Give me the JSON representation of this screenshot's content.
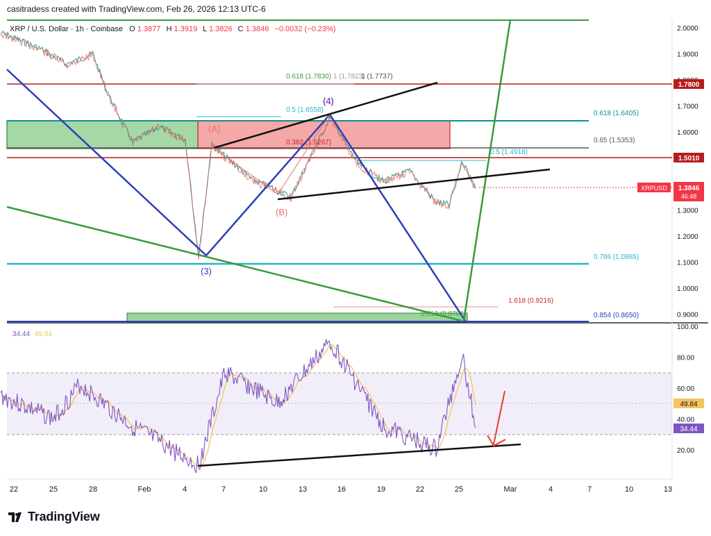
{
  "header": {
    "attribution": "casitradess created with TradingView.com, Feb 26, 2026 12:13 UTC-6"
  },
  "legend": {
    "symbol": "XRP / U.S. Dollar · 1h · Coinbase",
    "o_label": "O",
    "o": "1.3877",
    "h_label": "H",
    "h": "1.3919",
    "l_label": "L",
    "l": "1.3826",
    "c_label": "C",
    "c": "1.3846",
    "change": "−0.0032 (−0.23%)"
  },
  "colors": {
    "up": "#089981",
    "down": "#f23645",
    "blue": "#2b3fb8",
    "green": "#3a9a3a",
    "cyan": "#26b6c8",
    "red": "#b71c1c",
    "rsi": "#7e57c2",
    "rsi_ma": "#f5c45e",
    "price_badge": "#f23645",
    "rsi_badge": "#7e57c2",
    "ma_badge": "#f5c45e"
  },
  "price_axis": {
    "labels": [
      "2.0000",
      "1.9000",
      "1.8000",
      "1.7000",
      "1.6000",
      "1.5000",
      "1.4000",
      "1.3000",
      "1.2000",
      "1.1000",
      "1.0000",
      "0.9000"
    ],
    "badges": {
      "level_1780": "1.7800",
      "level_1501": "1.5010",
      "symbol": "XRPUSD",
      "price": "1.3846",
      "countdown": "46:48"
    }
  },
  "fib_labels": {
    "f618_top": "0.618 (1.7830)",
    "f_1782": "1 (1.7823)",
    "f_1773": "1 (1.7737)",
    "f5_top": "0.5 (1.6558)",
    "f382": "0.382 (1.5267)",
    "f5_mid": "0.5 (1.4918)",
    "f1618": "1.618 (0.9216)",
    "f618_bot": "0.618 (0.8701)",
    "right_618": "0.618 (1.6405)",
    "right_65": "0.65 (1.5353)",
    "right_786": "0.786 (1.0885)",
    "right_854": "0.854 (0.8650)"
  },
  "wave_labels": {
    "A": "(A)",
    "B": "(B)",
    "three": "(3)",
    "four": "(4)"
  },
  "rsi_panel": {
    "legend_rsi": "34.44",
    "legend_ma": "49.84",
    "axis_labels": [
      "100.00",
      "80.00",
      "60.00",
      "40.00",
      "20.00"
    ],
    "ma_badge": "49.84",
    "rsi_badge": "34.44"
  },
  "time_axis": {
    "labels": [
      "22",
      "25",
      "28",
      "Feb",
      "4",
      "7",
      "10",
      "13",
      "16",
      "19",
      "22",
      "25",
      "Mar",
      "4",
      "7",
      "10",
      "13"
    ]
  },
  "chart_data": {
    "type": "line",
    "title": "XRP / U.S. Dollar · 1h · Coinbase",
    "price_key_points": [
      {
        "t": "Jan 21",
        "v": 1.98
      },
      {
        "t": "Jan 24",
        "v": 1.92
      },
      {
        "t": "Jan 26",
        "v": 1.86
      },
      {
        "t": "Jan 28",
        "v": 1.9
      },
      {
        "t": "Jan 29",
        "v": 1.76
      },
      {
        "t": "Jan 31",
        "v": 1.56
      },
      {
        "t": "Feb 2",
        "v": 1.62
      },
      {
        "t": "Feb 4",
        "v": 1.57
      },
      {
        "t": "Feb 5",
        "v": 1.12
      },
      {
        "t": "Feb 6",
        "v": 1.55
      },
      {
        "t": "Feb 9",
        "v": 1.42
      },
      {
        "t": "Feb 12",
        "v": 1.35
      },
      {
        "t": "Feb 15",
        "v": 1.66
      },
      {
        "t": "Feb 17",
        "v": 1.48
      },
      {
        "t": "Feb 19",
        "v": 1.41
      },
      {
        "t": "Feb 21",
        "v": 1.45
      },
      {
        "t": "Feb 23",
        "v": 1.33
      },
      {
        "t": "Feb 24",
        "v": 1.32
      },
      {
        "t": "Feb 25",
        "v": 1.49
      },
      {
        "t": "Feb 26",
        "v": 1.3846
      }
    ],
    "rsi_key_points": [
      {
        "t": "Jan 21",
        "v": 55
      },
      {
        "t": "Jan 25",
        "v": 40
      },
      {
        "t": "Jan 27",
        "v": 62
      },
      {
        "t": "Jan 31",
        "v": 35
      },
      {
        "t": "Feb 5",
        "v": 10
      },
      {
        "t": "Feb 7",
        "v": 70
      },
      {
        "t": "Feb 11",
        "v": 50
      },
      {
        "t": "Feb 15",
        "v": 90
      },
      {
        "t": "Feb 19",
        "v": 35
      },
      {
        "t": "Feb 23",
        "v": 20
      },
      {
        "t": "Feb 25",
        "v": 82
      },
      {
        "t": "Feb 26",
        "v": 34.44
      }
    ],
    "horizontal_levels": [
      1.78,
      1.6405,
      1.5353,
      1.501,
      1.0885,
      0.865
    ],
    "ylim": [
      0.865,
      2.03
    ],
    "rsi_ylim": [
      0,
      100
    ],
    "grid": false
  }
}
